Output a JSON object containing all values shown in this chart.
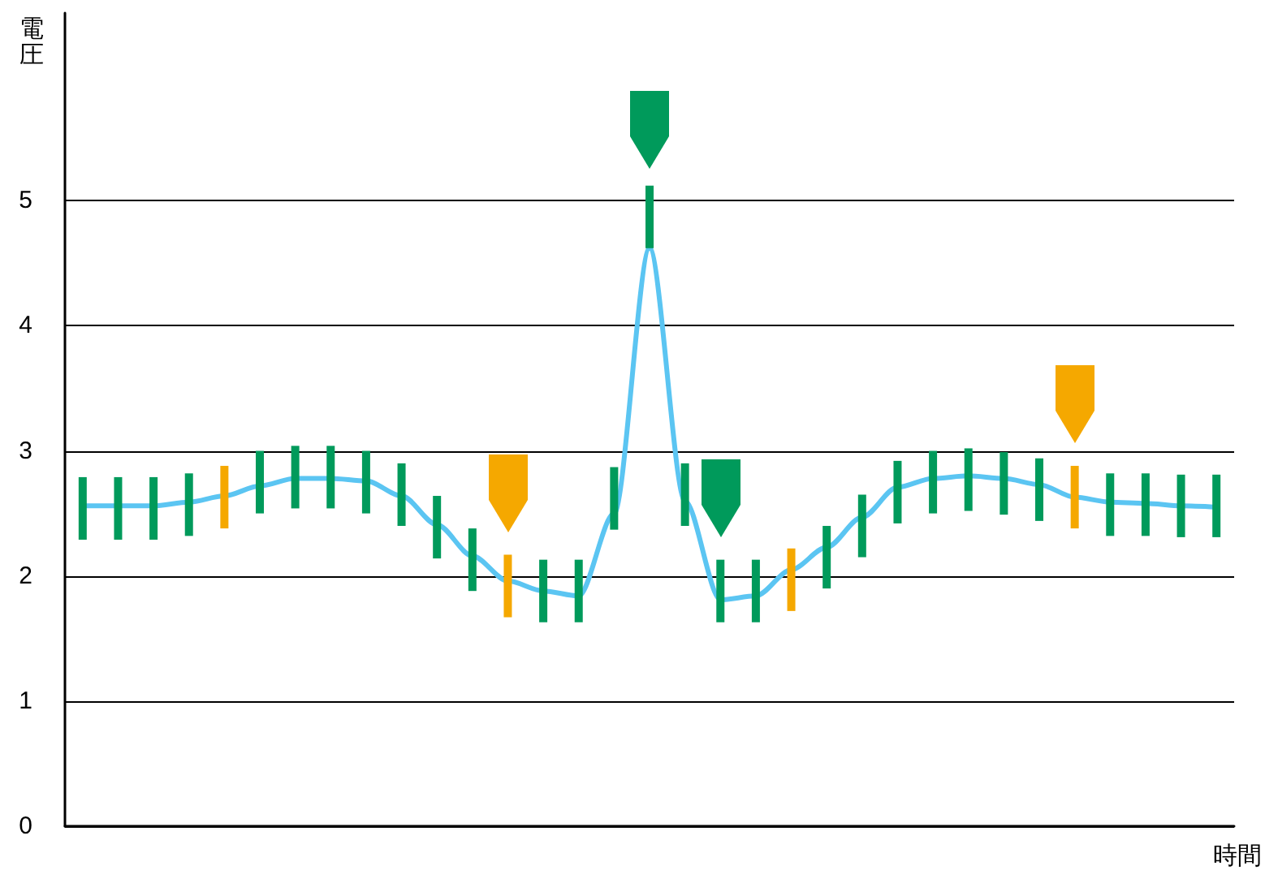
{
  "chart_data": {
    "type": "line",
    "xlabel": "時間",
    "ylabel": "電圧",
    "categories": [
      null,
      null,
      null,
      null,
      null,
      null,
      null,
      null,
      null,
      null,
      null,
      null,
      null,
      null,
      null,
      null,
      null,
      null,
      null,
      null,
      null,
      null,
      null,
      null,
      null,
      null,
      null,
      null,
      null,
      null,
      null,
      null,
      null
    ],
    "series": [
      {
        "color": "#5bc5f2",
        "values": [
          2.56,
          2.56,
          2.56,
          2.59,
          2.64,
          2.72,
          2.78,
          2.78,
          2.76,
          2.64,
          2.41,
          2.16,
          1.96,
          1.88,
          1.84,
          2.5,
          4.62,
          2.6,
          1.81,
          1.84,
          2.05,
          2.23,
          2.47,
          2.71,
          2.78,
          2.8,
          2.78,
          2.73,
          2.63,
          2.59,
          2.58,
          2.56,
          2.55
        ]
      },
      {
        "type": "bar",
        "base": [
          2.29,
          2.29,
          2.29,
          2.32,
          2.38,
          2.5,
          2.54,
          2.54,
          2.5,
          2.4,
          2.14,
          1.88,
          1.67,
          1.63,
          1.63,
          2.37,
          4.62,
          2.4,
          1.63,
          1.63,
          1.72,
          1.9,
          2.15,
          2.42,
          2.5,
          2.52,
          2.49,
          2.44,
          2.38,
          2.32,
          2.32,
          2.31,
          2.31
        ],
        "values": [
          0.5,
          0.5,
          0.5,
          0.5,
          0.5,
          0.5,
          0.5,
          0.5,
          0.5,
          0.5,
          0.5,
          0.5,
          0.5,
          0.5,
          0.5,
          0.5,
          0.5,
          0.5,
          0.5,
          0.5,
          0.5,
          0.5,
          0.5,
          0.5,
          0.5,
          0.5,
          0.5,
          0.5,
          0.5,
          0.5,
          0.5,
          0.5,
          0.5
        ],
        "colors": [
          "#009a5b",
          "#009a5b",
          "#009a5b",
          "#009a5b",
          "#f5a800",
          "#009a5b",
          "#009a5b",
          "#009a5b",
          "#009a5b",
          "#009a5b",
          "#009a5b",
          "#009a5b",
          "#f5a800",
          "#009a5b",
          "#009a5b",
          "#009a5b",
          "#009a5b",
          "#009a5b",
          "#009a5b",
          "#009a5b",
          "#f5a800",
          "#009a5b",
          "#009a5b",
          "#009a5b",
          "#009a5b",
          "#009a5b",
          "#009a5b",
          "#009a5b",
          "#f5a800",
          "#009a5b",
          "#009a5b",
          "#009a5b",
          "#009a5b"
        ]
      }
    ],
    "ylim": [
      0,
      6.5
    ],
    "yticks": [
      0,
      1,
      2,
      3,
      4,
      5
    ],
    "grid": "y",
    "marker": "none",
    "line_style": "solid"
  }
}
